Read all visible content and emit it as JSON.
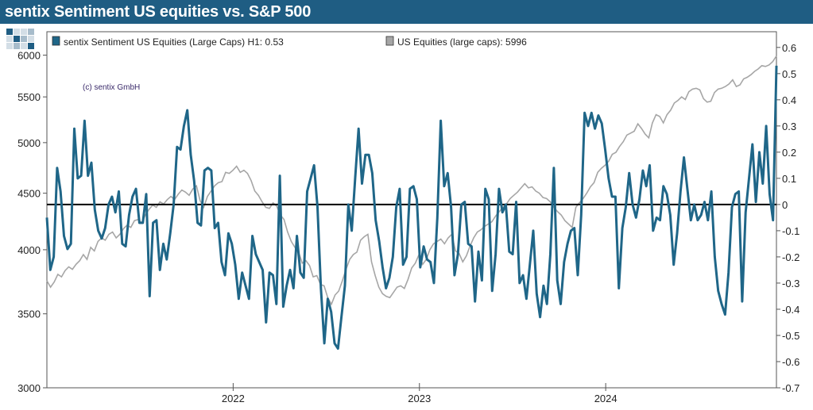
{
  "title": "sentix Sentiment US equities vs. S&P 500",
  "copyright": "(c) sentix GmbH",
  "colors": {
    "header_bg": "#1f5d83",
    "sentiment": "#1f6688",
    "sp500": "#a6a6a6",
    "zero_line": "#000000"
  },
  "chart_data": {
    "type": "line",
    "legend": [
      {
        "label": "sentix Sentiment US Equities (Large Caps) H1: 0.53",
        "color": "#1f6688"
      },
      {
        "label": "US Equities (large caps): 5996",
        "color": "#a6a6a6"
      }
    ],
    "left_axis": {
      "scale": "log",
      "range": [
        3000,
        6300
      ],
      "ticks": [
        "3000",
        "3500",
        "4000",
        "4500",
        "5000",
        "5500",
        "6000"
      ]
    },
    "right_axis": {
      "range": [
        -0.7,
        0.66
      ],
      "ticks": [
        "-0.7",
        "-0.6",
        "-0.5",
        "-0.4",
        "-0.3",
        "-0.2",
        "-0.1",
        "0",
        "0.1",
        "0.2",
        "0.3",
        "0.4",
        "0.5",
        "0.6"
      ]
    },
    "x_axis": {
      "range": [
        "2021-01",
        "2024-12"
      ],
      "ticks": [
        "2022",
        "2023",
        "2024"
      ]
    },
    "series": [
      {
        "name": "sentix Sentiment US Equities (Large Caps)",
        "axis": "right",
        "x_range": [
          "2021-01",
          "2024-12"
        ],
        "values": [
          -0.05,
          -0.25,
          -0.2,
          0.14,
          0.05,
          -0.12,
          -0.17,
          -0.15,
          0.29,
          0.1,
          0.11,
          0.32,
          0.11,
          0.16,
          -0.02,
          -0.1,
          -0.13,
          -0.09,
          0.0,
          0.03,
          -0.03,
          0.05,
          -0.15,
          -0.16,
          -0.04,
          0.03,
          0.06,
          -0.07,
          -0.07,
          0.04,
          -0.35,
          -0.07,
          -0.06,
          -0.25,
          -0.15,
          -0.21,
          -0.11,
          0.0,
          0.22,
          0.21,
          0.3,
          0.36,
          0.19,
          0.09,
          -0.07,
          -0.08,
          0.13,
          0.14,
          0.13,
          -0.09,
          -0.07,
          -0.22,
          -0.27,
          -0.11,
          -0.15,
          -0.23,
          -0.36,
          -0.26,
          -0.31,
          -0.36,
          -0.12,
          -0.19,
          -0.22,
          -0.25,
          -0.45,
          -0.26,
          -0.27,
          -0.38,
          0.11,
          -0.39,
          -0.31,
          -0.25,
          -0.32,
          -0.12,
          -0.26,
          -0.28,
          0.05,
          0.1,
          0.15,
          -0.01,
          -0.32,
          -0.53,
          -0.36,
          -0.41,
          -0.53,
          -0.55,
          -0.43,
          -0.31,
          0.0,
          -0.1,
          0.1,
          0.29,
          0.08,
          0.19,
          0.19,
          0.12,
          -0.06,
          -0.14,
          -0.24,
          -0.32,
          -0.28,
          -0.2,
          -0.01,
          0.06,
          -0.23,
          -0.2,
          0.06,
          0.07,
          0.02,
          -0.24,
          -0.16,
          -0.21,
          -0.22,
          -0.3,
          -0.05,
          0.32,
          0.07,
          0.12,
          -0.01,
          -0.27,
          -0.19,
          0.0,
          0.01,
          -0.15,
          -0.16,
          -0.37,
          -0.18,
          -0.29,
          0.06,
          0.02,
          -0.33,
          -0.19,
          0.06,
          -0.03,
          0.0,
          -0.18,
          -0.19,
          0.01,
          -0.3,
          -0.27,
          -0.36,
          -0.23,
          -0.1,
          -0.34,
          -0.43,
          -0.31,
          -0.38,
          -0.19,
          0.14,
          -0.29,
          -0.38,
          -0.22,
          -0.15,
          -0.1,
          -0.09,
          -0.27,
          -0.04,
          0.35,
          0.3,
          0.35,
          0.29,
          0.34,
          0.31,
          0.21,
          0.1,
          0.03,
          0.03,
          -0.32,
          -0.09,
          -0.01,
          0.12,
          0.0,
          -0.05,
          0.02,
          0.13,
          0.07,
          0.15,
          -0.1,
          -0.05,
          -0.06,
          0.07,
          0.04,
          -0.04,
          -0.23,
          -0.11,
          0.05,
          0.18,
          0.06,
          -0.06,
          0.0,
          -0.06,
          -0.04,
          0.01,
          -0.06,
          0.05,
          -0.2,
          -0.33,
          -0.38,
          -0.42,
          -0.26,
          -0.01,
          0.04,
          0.05,
          -0.37,
          -0.03,
          0.1,
          0.23,
          0.01,
          0.2,
          0.08,
          0.3,
          0.04,
          -0.06,
          0.53
        ]
      },
      {
        "name": "US Equities (large caps)",
        "axis": "left",
        "x_range": [
          "2021-01",
          "2024-12"
        ],
        "values": [
          3750,
          3700,
          3740,
          3800,
          3780,
          3830,
          3860,
          3840,
          3880,
          3910,
          3960,
          3920,
          4020,
          3990,
          4070,
          4100,
          4080,
          4130,
          4150,
          4100,
          4130,
          4180,
          4210,
          4190,
          4250,
          4260,
          4230,
          4300,
          4350,
          4390,
          4370,
          4420,
          4400,
          4440,
          4470,
          4440,
          4490,
          4530,
          4510,
          4480,
          4540,
          4570,
          4430,
          4370,
          4470,
          4520,
          4570,
          4600,
          4610,
          4700,
          4690,
          4720,
          4760,
          4700,
          4720,
          4690,
          4620,
          4520,
          4480,
          4420,
          4370,
          4360,
          4410,
          4380,
          4300,
          4260,
          4150,
          4070,
          4020,
          3980,
          3890,
          3910,
          3870,
          3780,
          3790,
          3720,
          3710,
          3620,
          3570,
          3640,
          3670,
          3750,
          3840,
          3920,
          3960,
          3980,
          4080,
          4110,
          4130,
          3900,
          3790,
          3700,
          3650,
          3630,
          3620,
          3660,
          3700,
          3710,
          3690,
          3760,
          3850,
          3890,
          3960,
          3880,
          3920,
          4000,
          4050,
          4070,
          4090,
          4050,
          4100,
          4130,
          3990,
          3970,
          3900,
          3950,
          4030,
          4100,
          4150,
          4170,
          4200,
          4220,
          4240,
          4290,
          4330,
          4370,
          4400,
          4450,
          4480,
          4510,
          4550,
          4590,
          4550,
          4560,
          4520,
          4500,
          4460,
          4450,
          4420,
          4370,
          4330,
          4300,
          4250,
          4220,
          4190,
          4370,
          4410,
          4450,
          4500,
          4560,
          4600,
          4700,
          4740,
          4770,
          4810,
          4880,
          4900,
          4960,
          5010,
          5080,
          5100,
          5120,
          5200,
          5150,
          5090,
          5050,
          5210,
          5300,
          5280,
          5210,
          5300,
          5350,
          5430,
          5460,
          5500,
          5470,
          5560,
          5590,
          5600,
          5580,
          5480,
          5440,
          5450,
          5550,
          5590,
          5600,
          5620,
          5650,
          5700,
          5620,
          5640,
          5710,
          5730,
          5760,
          5800,
          5830,
          5870,
          5860,
          5880,
          5920,
          5990
        ]
      }
    ]
  }
}
